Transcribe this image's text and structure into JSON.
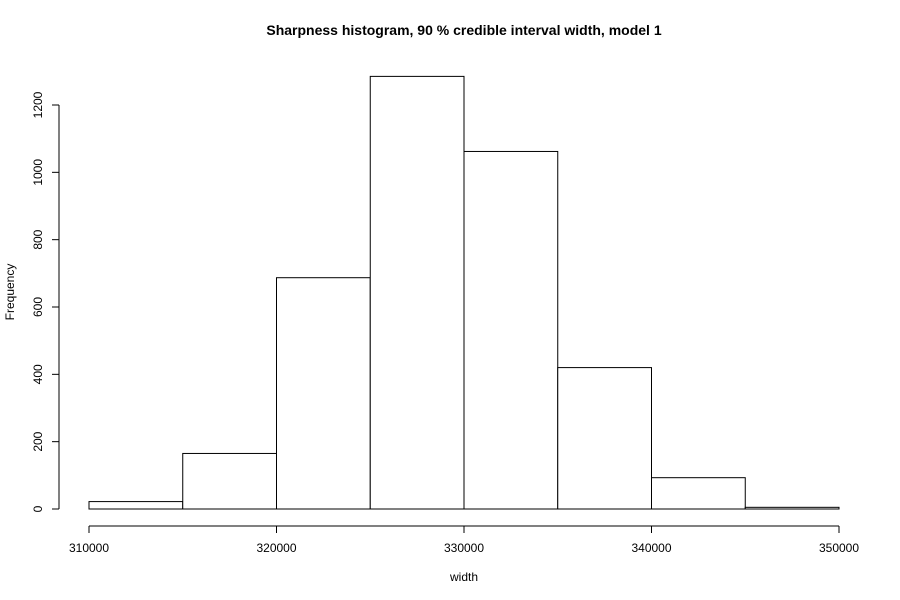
{
  "chart_data": {
    "type": "bar",
    "title": "Sharpness histogram, 90 % credible interval width, model 1",
    "xlabel": "width",
    "ylabel": "Frequency",
    "bins": [
      {
        "start": 310000,
        "end": 315000,
        "count": 22
      },
      {
        "start": 315000,
        "end": 320000,
        "count": 165
      },
      {
        "start": 320000,
        "end": 325000,
        "count": 687
      },
      {
        "start": 325000,
        "end": 330000,
        "count": 1285
      },
      {
        "start": 330000,
        "end": 335000,
        "count": 1062
      },
      {
        "start": 335000,
        "end": 340000,
        "count": 420
      },
      {
        "start": 340000,
        "end": 345000,
        "count": 93
      },
      {
        "start": 345000,
        "end": 350000,
        "count": 5
      }
    ],
    "xlim": [
      310000,
      350000
    ],
    "ylim": [
      0,
      1200
    ],
    "xticks": [
      "310000",
      "320000",
      "330000",
      "340000",
      "350000"
    ],
    "yticks": [
      "0",
      "200",
      "400",
      "600",
      "800",
      "1000",
      "1200"
    ],
    "grid": false,
    "legend": "none"
  }
}
